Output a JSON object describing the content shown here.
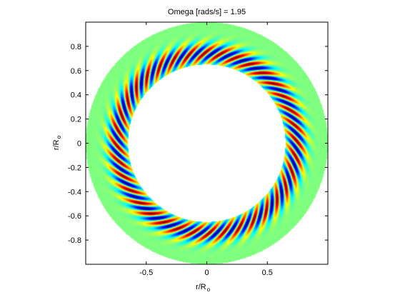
{
  "chart_data": {
    "type": "heatmap",
    "title": "Omega [rads/s] = 1.95",
    "xlabel": {
      "main": "r/R",
      "subscript": "o"
    },
    "ylabel": {
      "main": "r/R",
      "subscript": "o"
    },
    "xlim": [
      -1,
      1
    ],
    "ylim": [
      -1,
      1
    ],
    "xticks": [
      -1,
      -0.5,
      0,
      0.5,
      1
    ],
    "xtick_labels": [
      "",
      "-0.5",
      "0",
      "0.5",
      ""
    ],
    "yticks": [
      -0.8,
      -0.6,
      -0.4,
      -0.2,
      0,
      0.2,
      0.4,
      0.6,
      0.8
    ],
    "ytick_labels": [
      "-0.8",
      "-0.6",
      "-0.4",
      "-0.2",
      "0",
      "0.2",
      "0.4",
      "0.6",
      "0.8"
    ],
    "annulus": {
      "inner_radius": 0.65,
      "outer_radius": 1.0
    },
    "field": {
      "azimuthal_mode": 36,
      "spiral_twist": 1.6,
      "peak_radius": 0.74,
      "radial_width": 0.085
    },
    "colormap": "jet",
    "background_value_color": "#80ff80",
    "grid": false
  }
}
